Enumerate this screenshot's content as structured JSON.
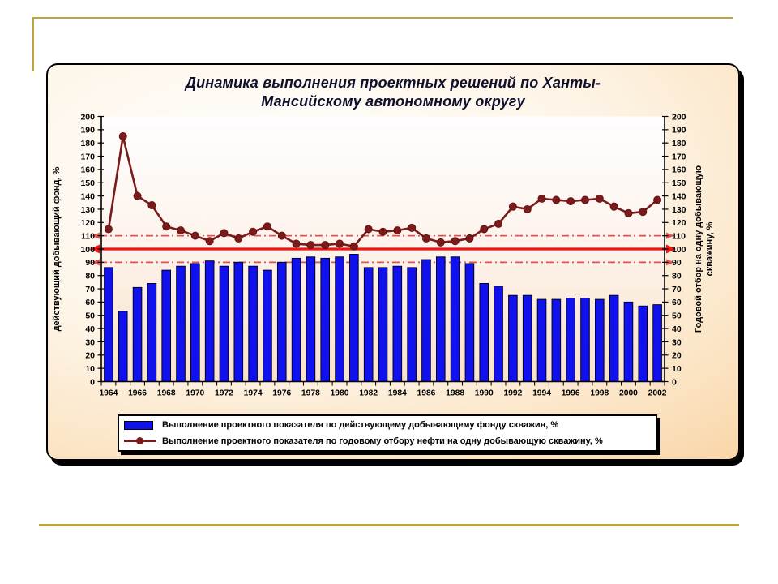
{
  "slide": {
    "background_color": "#FFFFFF",
    "accent_line_color": "#C2A23C"
  },
  "panel": {
    "border_color": "#000000",
    "gradient_colors": [
      "#FFFFFF",
      "#FDF4E6",
      "#F7C386"
    ],
    "plot_bg_colors": [
      "#FFFEFE",
      "#FDF3EC",
      "#F9E2CA"
    ]
  },
  "chart_data": {
    "type": "bar+line",
    "title": "Динамика выполнения проектных решений по Ханты-\nМансийскому автономному округу",
    "categories": [
      "1964",
      "1965",
      "1966",
      "1967",
      "1968",
      "1969",
      "1970",
      "1971",
      "1972",
      "1973",
      "1974",
      "1975",
      "1976",
      "1977",
      "1978",
      "1979",
      "1980",
      "1981",
      "1982",
      "1983",
      "1984",
      "1985",
      "1986",
      "1987",
      "1988",
      "1989",
      "1990",
      "1991",
      "1992",
      "1993",
      "1994",
      "1995",
      "1996",
      "1997",
      "1998",
      "1999",
      "2000",
      "2001",
      "2002"
    ],
    "x_tick_step": 2,
    "series": [
      {
        "name": "Выполнение проектного показателя по действующему добывающему фонду скважин, %",
        "type": "bar",
        "axis": "left",
        "color": "#1111EE",
        "outline": "#00002A",
        "values": [
          86,
          53,
          71,
          74,
          84,
          87,
          89,
          91,
          87,
          90,
          87,
          84,
          90,
          93,
          94,
          93,
          94,
          96,
          86,
          86,
          87,
          86,
          92,
          94,
          94,
          89,
          74,
          72,
          65,
          65,
          62,
          62,
          63,
          63,
          62,
          65,
          60,
          57,
          58
        ]
      },
      {
        "name": "Выполнение проектного показателя по годовому отбору нефти на одну добывающую скважину, %",
        "type": "line",
        "axis": "right",
        "color": "#7B1A1A",
        "values": [
          115,
          185,
          140,
          133,
          117,
          114,
          110,
          106,
          112,
          108,
          113,
          117,
          110,
          104,
          103,
          103,
          104,
          102,
          115,
          113,
          114,
          116,
          108,
          105,
          106,
          108,
          115,
          119,
          132,
          130,
          138,
          137,
          136,
          137,
          138,
          132,
          127,
          128,
          137
        ]
      }
    ],
    "left_axis": {
      "label": "действующий добывающий фонд, %",
      "min": 0,
      "max": 200,
      "step": 10
    },
    "right_axis": {
      "label": "Годовой отбор на одну добывающую\nскважину, %",
      "min": 0,
      "max": 200,
      "step": 10
    },
    "reference_lines": [
      {
        "value": 110,
        "style": "dashdot",
        "color": "#E25050"
      },
      {
        "value": 100,
        "style": "solid",
        "color": "#F01414"
      },
      {
        "value": 90,
        "style": "dashdot",
        "color": "#E25050"
      }
    ],
    "legend_position": "bottom"
  }
}
